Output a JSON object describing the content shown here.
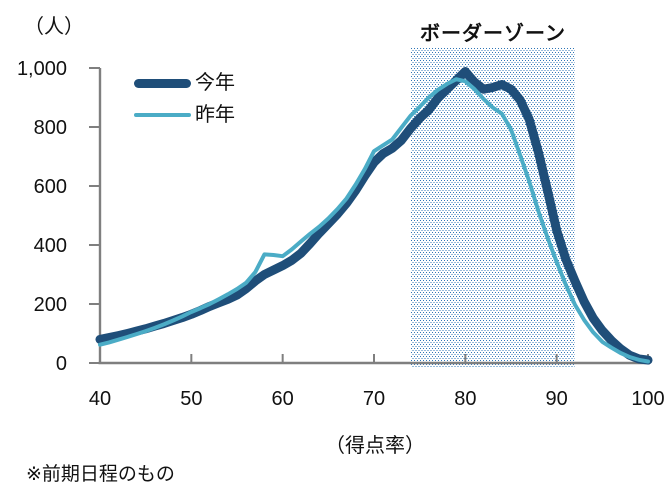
{
  "footnote": "※前期日程のもの",
  "border_zone": {
    "label": "ボーダーゾーン",
    "x_start": 74,
    "x_end": 92,
    "dot_color": "#2E75B6"
  },
  "legend": {
    "items": [
      {
        "key": "this-year",
        "label": "今年",
        "color": "#1F4E79",
        "line_width": 9
      },
      {
        "key": "last-year",
        "label": "昨年",
        "color": "#4BACC6",
        "line_width": 4
      }
    ]
  },
  "colors": {
    "axis": "#7F7F7F",
    "text": "#111111",
    "background": "#FFFFFF"
  },
  "chart_data": {
    "type": "line",
    "title": "",
    "xlabel": "（得点率）",
    "ylabel": "（人）",
    "xlim": [
      40,
      100
    ],
    "ylim": [
      0,
      1000
    ],
    "grid": false,
    "legend_position": "top-left-inside",
    "x_ticks": [
      40,
      50,
      60,
      70,
      80,
      90,
      100
    ],
    "y_ticks": [
      0,
      200,
      400,
      600,
      800,
      1000
    ],
    "y_tick_labels": [
      "0",
      "200",
      "400",
      "600",
      "800",
      "1,000"
    ],
    "annotations": [
      {
        "type": "shaded_zone",
        "label": "ボーダーゾーン",
        "x_start": 74,
        "x_end": 92,
        "style": "blue-dotted-fill"
      }
    ],
    "x": [
      40,
      41,
      42,
      43,
      44,
      45,
      46,
      47,
      48,
      49,
      50,
      51,
      52,
      53,
      54,
      55,
      56,
      57,
      58,
      59,
      60,
      61,
      62,
      63,
      64,
      65,
      66,
      67,
      68,
      69,
      70,
      71,
      72,
      73,
      74,
      75,
      76,
      77,
      78,
      79,
      80,
      81,
      82,
      83,
      84,
      85,
      86,
      87,
      88,
      89,
      90,
      91,
      92,
      93,
      94,
      95,
      96,
      97,
      98,
      99,
      100
    ],
    "series": [
      {
        "key": "this-year",
        "name": "今年",
        "color": "#1F4E79",
        "stroke_width": 9,
        "values": [
          80,
          86,
          93,
          100,
          108,
          116,
          125,
          134,
          144,
          154,
          165,
          178,
          192,
          204,
          216,
          230,
          252,
          278,
          300,
          315,
          330,
          348,
          372,
          405,
          440,
          472,
          505,
          542,
          585,
          635,
          680,
          710,
          728,
          755,
          795,
          830,
          858,
          898,
          928,
          958,
          988,
          952,
          928,
          934,
          944,
          928,
          892,
          825,
          715,
          585,
          450,
          352,
          278,
          208,
          152,
          110,
          76,
          48,
          26,
          14,
          10
        ]
      },
      {
        "key": "last-year",
        "name": "昨年",
        "color": "#4BACC6",
        "stroke_width": 4,
        "values": [
          62,
          70,
          79,
          88,
          98,
          108,
          119,
          131,
          144,
          158,
          173,
          186,
          200,
          216,
          233,
          251,
          272,
          308,
          368,
          366,
          362,
          385,
          412,
          438,
          462,
          490,
          522,
          558,
          605,
          658,
          718,
          738,
          758,
          798,
          838,
          868,
          900,
          926,
          946,
          962,
          955,
          928,
          895,
          866,
          845,
          792,
          705,
          615,
          515,
          425,
          342,
          265,
          198,
          146,
          104,
          72,
          52,
          34,
          20,
          11,
          5
        ]
      }
    ]
  }
}
